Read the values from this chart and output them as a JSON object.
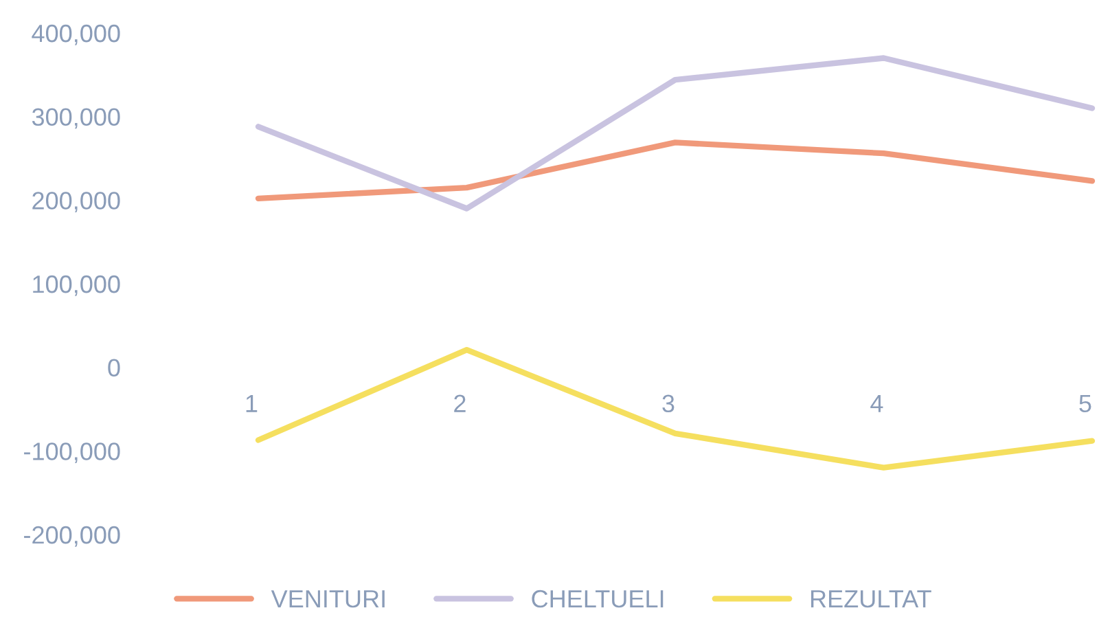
{
  "chart_data": {
    "type": "line",
    "categories": [
      "1",
      "2",
      "3",
      "4",
      "5"
    ],
    "series": [
      {
        "name": "VENITURI",
        "color": "#f0997a",
        "values": [
          202000,
          215000,
          269000,
          256000,
          223000
        ]
      },
      {
        "name": "CHELTUELI",
        "color": "#c9c3e0",
        "values": [
          288000,
          190000,
          344000,
          370000,
          310000
        ]
      },
      {
        "name": "REZULTAT",
        "color": "#f5df5f",
        "values": [
          -87000,
          21000,
          -79000,
          -120000,
          -88000
        ]
      }
    ],
    "ylim": [
      -200000,
      400000
    ],
    "yticks": [
      {
        "value": -200000,
        "label": "-200,000"
      },
      {
        "value": -100000,
        "label": "-100,000"
      },
      {
        "value": 0,
        "label": "0"
      },
      {
        "value": 100000,
        "label": "100,000"
      },
      {
        "value": 200000,
        "label": "200,000"
      },
      {
        "value": 300000,
        "label": "300,000"
      },
      {
        "value": 400000,
        "label": "400,000"
      }
    ],
    "grid": false,
    "legend": "bottom",
    "marker": "none",
    "line_style": "solid"
  }
}
